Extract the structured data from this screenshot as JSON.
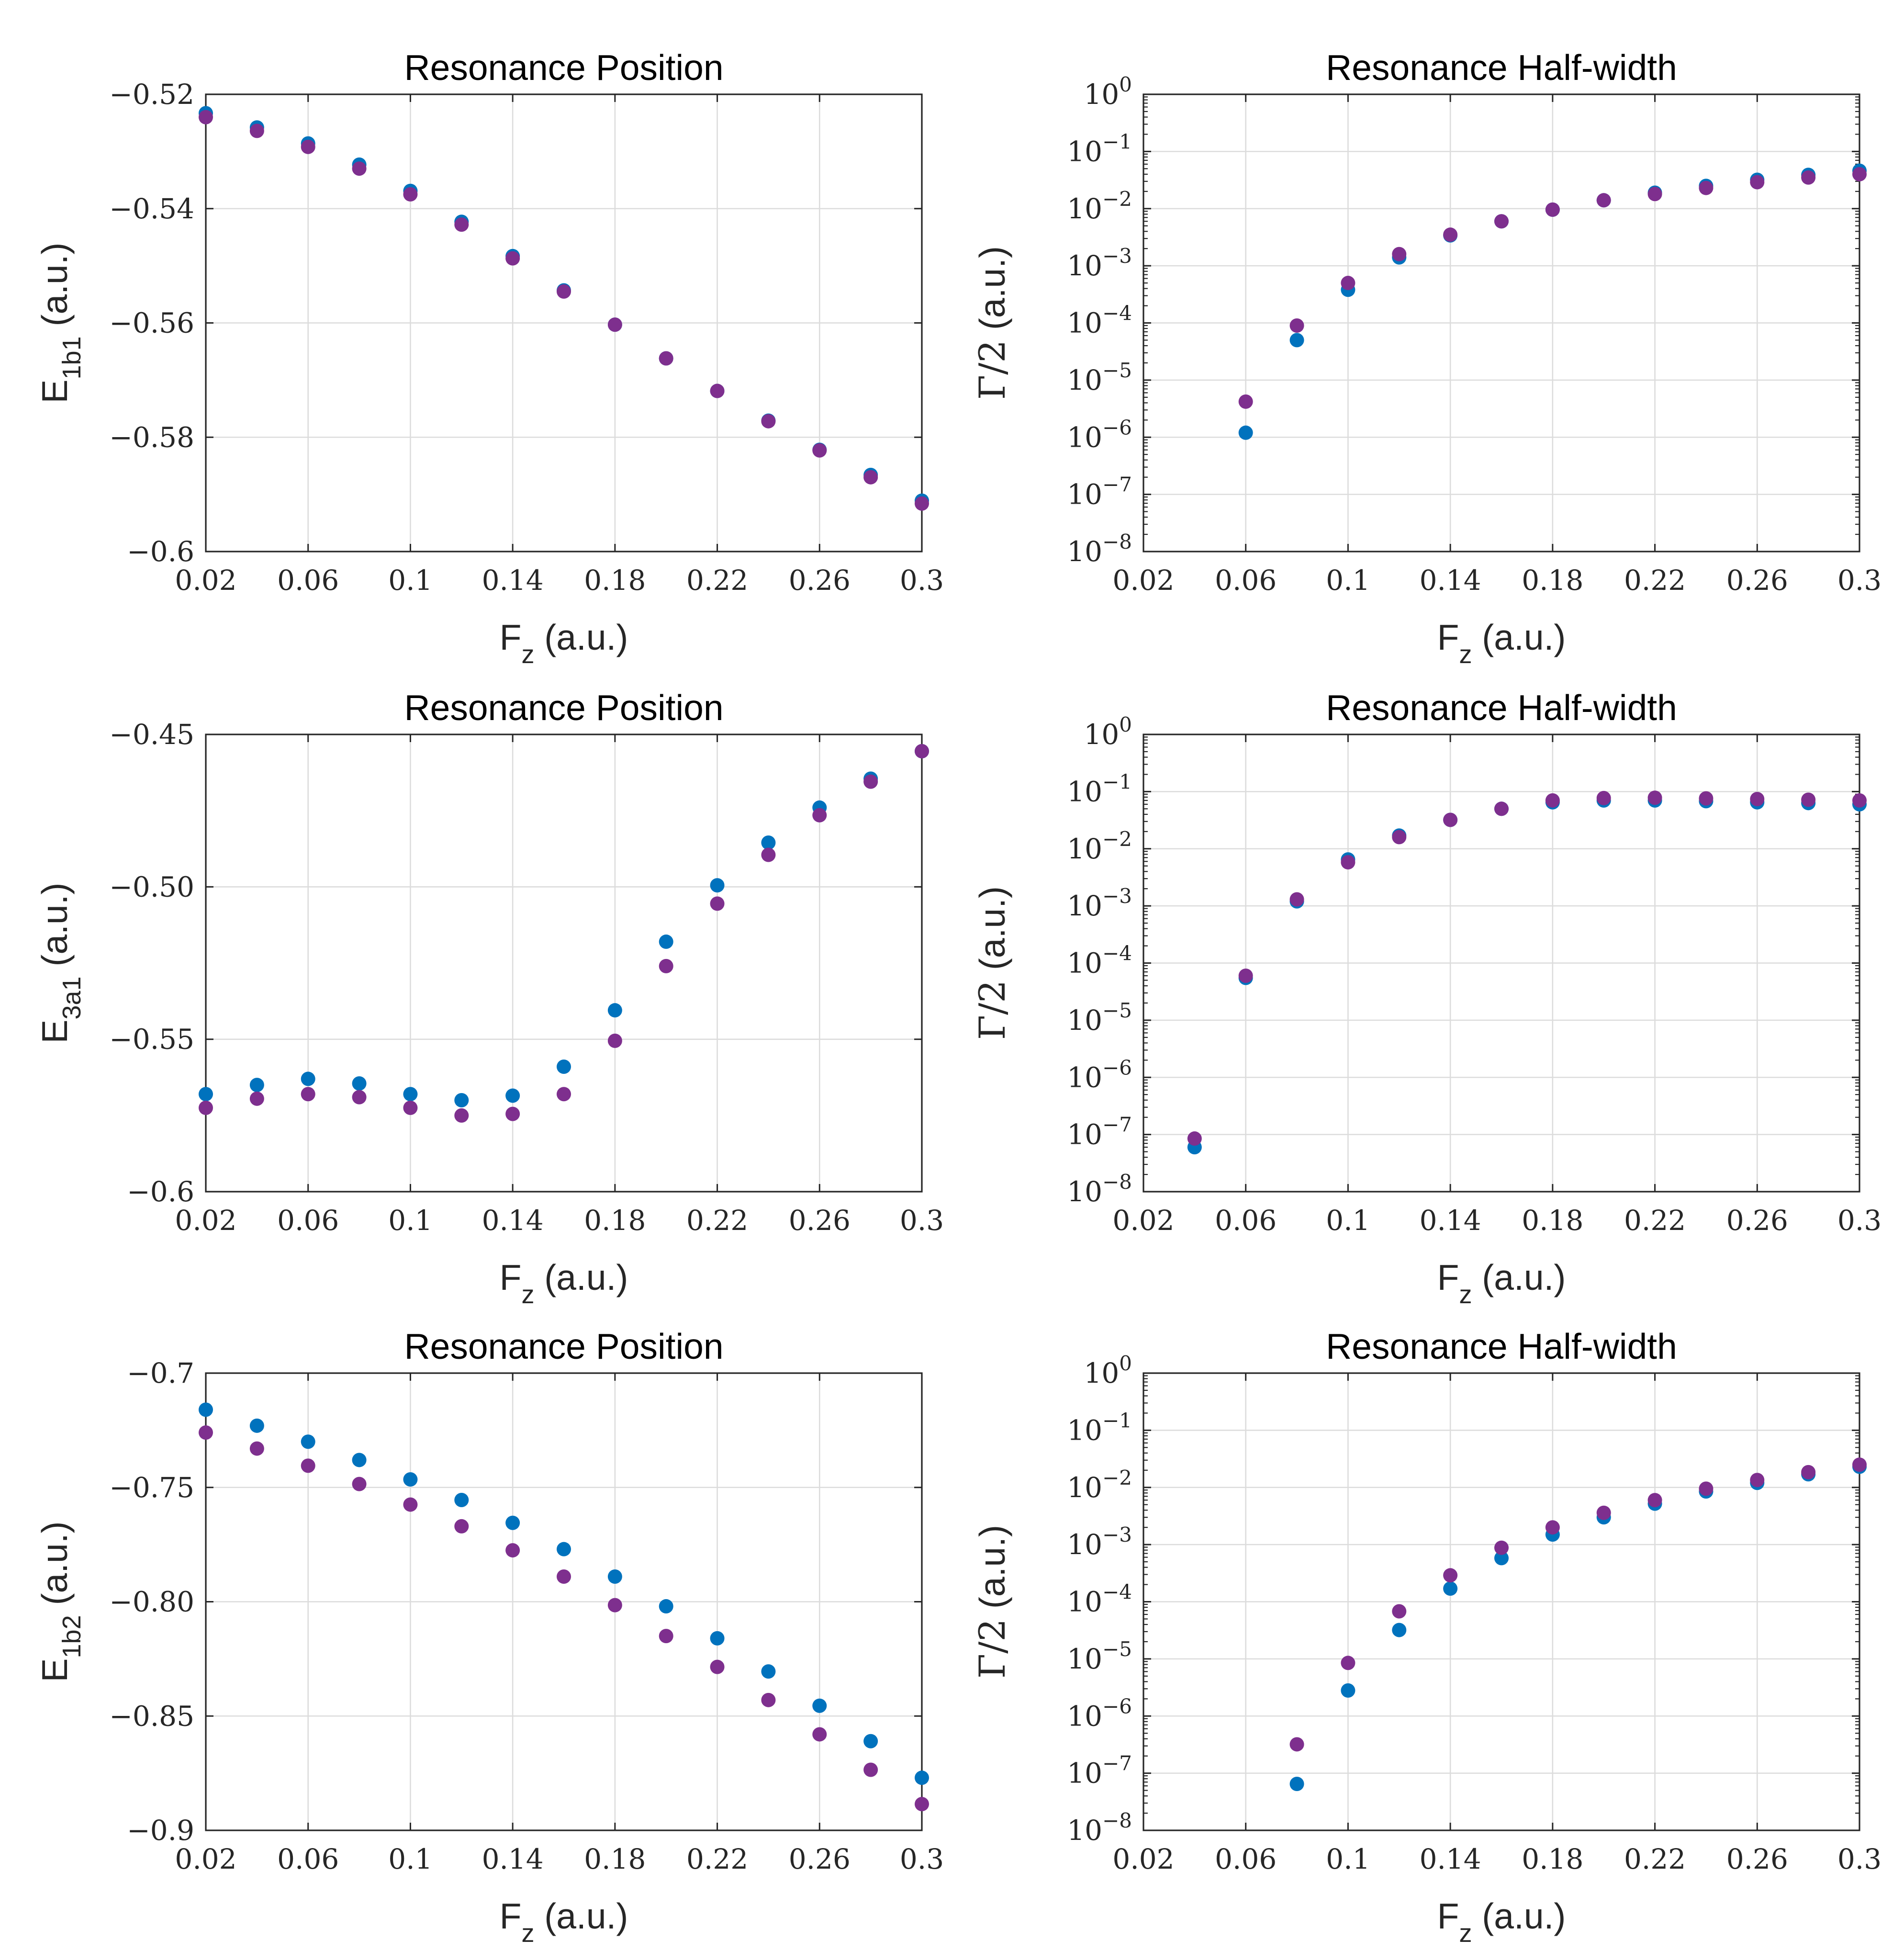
{
  "chart_data": [
    {
      "type": "scatter",
      "title": "Resonance Position",
      "xlabel": {
        "main": "F",
        "sub": "z",
        "suffix": " (a.u.)"
      },
      "ylabel": {
        "main": "E",
        "sub": "1b1",
        "suffix": " (a.u.)"
      },
      "yscale": "linear",
      "xlim": [
        0.02,
        0.3
      ],
      "ylim": [
        -0.6,
        -0.52
      ],
      "xticks": [
        0.02,
        0.06,
        0.1,
        0.14,
        0.18,
        0.22,
        0.26,
        0.3
      ],
      "xtick_labels": [
        "0.02",
        "0.06",
        "0.1",
        "0.14",
        "0.18",
        "0.22",
        "0.26",
        "0.3"
      ],
      "yticks": [
        -0.6,
        -0.58,
        -0.56,
        -0.54,
        -0.52
      ],
      "ytick_labels": [
        "−0.6",
        "−0.58",
        "−0.56",
        "−0.54",
        "−0.52"
      ],
      "grid": true,
      "x": [
        0.02,
        0.04,
        0.06,
        0.08,
        0.1,
        0.12,
        0.14,
        0.16,
        0.18,
        0.2,
        0.22,
        0.24,
        0.26,
        0.28,
        0.3
      ],
      "series": [
        {
          "name": "series-blue",
          "color": "#0072BD",
          "values": [
            -0.5233,
            -0.5258,
            -0.5286,
            -0.5323,
            -0.5369,
            -0.5423,
            -0.5483,
            -0.5543,
            -0.5603,
            -0.5662,
            -0.5719,
            -0.5771,
            -0.5822,
            -0.5866,
            -0.5911
          ]
        },
        {
          "name": "series-purple",
          "color": "#7E2F8E",
          "values": [
            -0.524,
            -0.5264,
            -0.5292,
            -0.533,
            -0.5375,
            -0.5428,
            -0.5487,
            -0.5545,
            -0.5603,
            -0.5662,
            -0.5719,
            -0.5772,
            -0.5823,
            -0.587,
            -0.5916
          ]
        }
      ]
    },
    {
      "type": "scatter",
      "title": "Resonance Half-width",
      "xlabel": {
        "main": "F",
        "sub": "z",
        "suffix": " (a.u.)"
      },
      "ylabel": {
        "main": "Γ/2",
        "sub": "",
        "suffix": " (a.u.)"
      },
      "yscale": "log",
      "xlim": [
        0.02,
        0.3
      ],
      "ylim_exponents": [
        -8,
        0
      ],
      "xticks": [
        0.02,
        0.06,
        0.1,
        0.14,
        0.18,
        0.22,
        0.26,
        0.3
      ],
      "xtick_labels": [
        "0.02",
        "0.06",
        "0.1",
        "0.14",
        "0.18",
        "0.22",
        "0.26",
        "0.3"
      ],
      "ytick_exponents": [
        -8,
        -7,
        -6,
        -5,
        -4,
        -3,
        -2,
        -1,
        0
      ],
      "ytick_base": "10",
      "grid": true,
      "x": [
        0.06,
        0.08,
        0.1,
        0.12,
        0.14,
        0.16,
        0.18,
        0.2,
        0.22,
        0.24,
        0.26,
        0.28,
        0.3
      ],
      "series": [
        {
          "name": "series-blue",
          "color": "#0072BD",
          "values": [
            1.2e-06,
            5e-05,
            0.00038,
            0.0014,
            0.0034,
            0.006,
            0.0096,
            0.014,
            0.019,
            0.025,
            0.032,
            0.039,
            0.046
          ]
        },
        {
          "name": "series-purple",
          "color": "#7E2F8E",
          "values": [
            4.2e-06,
            9e-05,
            0.0005,
            0.0016,
            0.0035,
            0.006,
            0.0096,
            0.014,
            0.018,
            0.023,
            0.029,
            0.035,
            0.04
          ]
        }
      ]
    },
    {
      "type": "scatter",
      "title": "Resonance Position",
      "xlabel": {
        "main": "F",
        "sub": "z",
        "suffix": " (a.u.)"
      },
      "ylabel": {
        "main": "E",
        "sub": "3a1",
        "suffix": " (a.u.)"
      },
      "yscale": "linear",
      "xlim": [
        0.02,
        0.3
      ],
      "ylim": [
        -0.6,
        -0.45
      ],
      "xticks": [
        0.02,
        0.06,
        0.1,
        0.14,
        0.18,
        0.22,
        0.26,
        0.3
      ],
      "xtick_labels": [
        "0.02",
        "0.06",
        "0.1",
        "0.14",
        "0.18",
        "0.22",
        "0.26",
        "0.3"
      ],
      "yticks": [
        -0.6,
        -0.55,
        -0.5,
        -0.45
      ],
      "ytick_labels": [
        "−0.6",
        "−0.55",
        "−0.50",
        "−0.45"
      ],
      "grid": true,
      "x": [
        0.02,
        0.04,
        0.06,
        0.08,
        0.1,
        0.12,
        0.14,
        0.16,
        0.18,
        0.2,
        0.22,
        0.24,
        0.26,
        0.28,
        0.3
      ],
      "series": [
        {
          "name": "series-blue",
          "color": "#0072BD",
          "values": [
            -0.568,
            -0.565,
            -0.563,
            -0.5645,
            -0.568,
            -0.57,
            -0.5685,
            -0.559,
            -0.5405,
            -0.518,
            -0.4995,
            -0.4855,
            -0.474,
            -0.4645,
            -0.4555
          ]
        },
        {
          "name": "series-purple",
          "color": "#7E2F8E",
          "values": [
            -0.5725,
            -0.5695,
            -0.568,
            -0.569,
            -0.5725,
            -0.575,
            -0.5745,
            -0.568,
            -0.5505,
            -0.526,
            -0.5055,
            -0.4895,
            -0.4765,
            -0.4655,
            -0.4555
          ]
        }
      ]
    },
    {
      "type": "scatter",
      "title": "Resonance Half-width",
      "xlabel": {
        "main": "F",
        "sub": "z",
        "suffix": " (a.u.)"
      },
      "ylabel": {
        "main": "Γ/2",
        "sub": "",
        "suffix": " (a.u.)"
      },
      "yscale": "log",
      "xlim": [
        0.02,
        0.3
      ],
      "ylim_exponents": [
        -8,
        0
      ],
      "xticks": [
        0.02,
        0.06,
        0.1,
        0.14,
        0.18,
        0.22,
        0.26,
        0.3
      ],
      "xtick_labels": [
        "0.02",
        "0.06",
        "0.1",
        "0.14",
        "0.18",
        "0.22",
        "0.26",
        "0.3"
      ],
      "ytick_exponents": [
        -8,
        -7,
        -6,
        -5,
        -4,
        -3,
        -2,
        -1,
        0
      ],
      "ytick_base": "10",
      "grid": true,
      "x": [
        0.04,
        0.06,
        0.08,
        0.1,
        0.12,
        0.14,
        0.16,
        0.18,
        0.2,
        0.22,
        0.24,
        0.26,
        0.28,
        0.3
      ],
      "series": [
        {
          "name": "series-blue",
          "color": "#0072BD",
          "values": [
            6e-08,
            5.5e-05,
            0.0012,
            0.0065,
            0.017,
            0.032,
            0.05,
            0.065,
            0.07,
            0.07,
            0.068,
            0.065,
            0.063,
            0.06
          ]
        },
        {
          "name": "series-purple",
          "color": "#7E2F8E",
          "values": [
            8.5e-08,
            6e-05,
            0.0013,
            0.0058,
            0.016,
            0.032,
            0.05,
            0.07,
            0.077,
            0.078,
            0.076,
            0.074,
            0.072,
            0.07
          ]
        }
      ]
    },
    {
      "type": "scatter",
      "title": "Resonance Position",
      "xlabel": {
        "main": "F",
        "sub": "z",
        "suffix": " (a.u.)"
      },
      "ylabel": {
        "main": "E",
        "sub": "1b2",
        "suffix": " (a.u.)"
      },
      "yscale": "linear",
      "xlim": [
        0.02,
        0.3
      ],
      "ylim": [
        -0.9,
        -0.7
      ],
      "xticks": [
        0.02,
        0.06,
        0.1,
        0.14,
        0.18,
        0.22,
        0.26,
        0.3
      ],
      "xtick_labels": [
        "0.02",
        "0.06",
        "0.1",
        "0.14",
        "0.18",
        "0.22",
        "0.26",
        "0.3"
      ],
      "yticks": [
        -0.9,
        -0.85,
        -0.8,
        -0.75,
        -0.7
      ],
      "ytick_labels": [
        "−0.9",
        "−0.85",
        "−0.80",
        "−0.75",
        "−0.7"
      ],
      "grid": true,
      "x": [
        0.02,
        0.04,
        0.06,
        0.08,
        0.1,
        0.12,
        0.14,
        0.16,
        0.18,
        0.2,
        0.22,
        0.24,
        0.26,
        0.28,
        0.3
      ],
      "series": [
        {
          "name": "series-blue",
          "color": "#0072BD",
          "values": [
            -0.716,
            -0.723,
            -0.73,
            -0.738,
            -0.7465,
            -0.7555,
            -0.7655,
            -0.777,
            -0.789,
            -0.802,
            -0.816,
            -0.8305,
            -0.8455,
            -0.861,
            -0.877
          ]
        },
        {
          "name": "series-purple",
          "color": "#7E2F8E",
          "values": [
            -0.726,
            -0.733,
            -0.7405,
            -0.7485,
            -0.7575,
            -0.767,
            -0.7775,
            -0.789,
            -0.8015,
            -0.815,
            -0.8285,
            -0.843,
            -0.858,
            -0.8735,
            -0.8885
          ]
        }
      ]
    },
    {
      "type": "scatter",
      "title": "Resonance Half-width",
      "xlabel": {
        "main": "F",
        "sub": "z",
        "suffix": " (a.u.)"
      },
      "ylabel": {
        "main": "Γ/2",
        "sub": "",
        "suffix": " (a.u.)"
      },
      "yscale": "log",
      "xlim": [
        0.02,
        0.3
      ],
      "ylim_exponents": [
        -8,
        0
      ],
      "xticks": [
        0.02,
        0.06,
        0.1,
        0.14,
        0.18,
        0.22,
        0.26,
        0.3
      ],
      "xtick_labels": [
        "0.02",
        "0.06",
        "0.1",
        "0.14",
        "0.18",
        "0.22",
        "0.26",
        "0.3"
      ],
      "ytick_exponents": [
        -8,
        -7,
        -6,
        -5,
        -4,
        -3,
        -2,
        -1,
        0
      ],
      "ytick_base": "10",
      "grid": true,
      "x": [
        0.08,
        0.1,
        0.12,
        0.14,
        0.16,
        0.18,
        0.2,
        0.22,
        0.24,
        0.26,
        0.28,
        0.3
      ],
      "series": [
        {
          "name": "series-blue",
          "color": "#0072BD",
          "values": [
            6.5e-08,
            2.8e-06,
            3.2e-05,
            0.00017,
            0.00058,
            0.0015,
            0.003,
            0.0052,
            0.0085,
            0.012,
            0.017,
            0.023
          ]
        },
        {
          "name": "series-purple",
          "color": "#7E2F8E",
          "values": [
            3.2e-07,
            8.5e-06,
            6.8e-05,
            0.00029,
            0.00088,
            0.002,
            0.0036,
            0.006,
            0.0095,
            0.0135,
            0.0185,
            0.025
          ]
        }
      ]
    }
  ]
}
